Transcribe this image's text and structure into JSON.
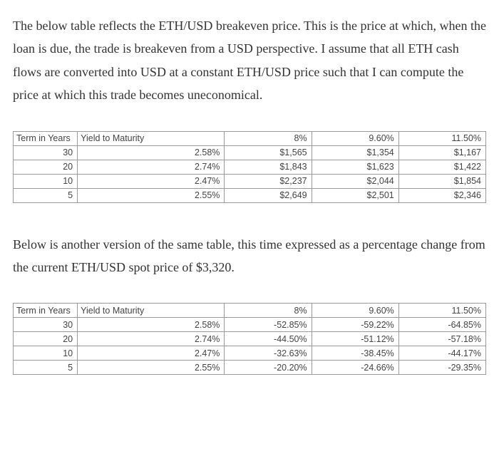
{
  "paragraph1": "The below table reflects the ETH/USD breakeven price. This is the price at which, when the loan is due, the trade is breakeven from a USD perspective. I assume that all ETH cash flows are converted into USD at a constant ETH/USD price such that I can compute the price at which this trade becomes uneconomical.",
  "paragraph2": "Below is another version of the same table, this time expressed as a percentage change from the current ETH/USD spot price of $3,320.",
  "table1": {
    "header_term": "Term in Years",
    "header_ytm": "Yield to Maturity",
    "header_c1": "8%",
    "header_c2": "9.60%",
    "header_c3": "11.50%",
    "rows": [
      {
        "term": "30",
        "ytm": "2.58%",
        "c1": "$1,565",
        "c2": "$1,354",
        "c3": "$1,167"
      },
      {
        "term": "20",
        "ytm": "2.74%",
        "c1": "$1,843",
        "c2": "$1,623",
        "c3": "$1,422"
      },
      {
        "term": "10",
        "ytm": "2.47%",
        "c1": "$2,237",
        "c2": "$2,044",
        "c3": "$1,854"
      },
      {
        "term": "5",
        "ytm": "2.55%",
        "c1": "$2,649",
        "c2": "$2,501",
        "c3": "$2,346"
      }
    ]
  },
  "table2": {
    "header_term": "Term in Years",
    "header_ytm": "Yield to Maturity",
    "header_c1": "8%",
    "header_c2": "9.60%",
    "header_c3": "11.50%",
    "rows": [
      {
        "term": "30",
        "ytm": "2.58%",
        "c1": "-52.85%",
        "c2": "-59.22%",
        "c3": "-64.85%"
      },
      {
        "term": "20",
        "ytm": "2.74%",
        "c1": "-44.50%",
        "c2": "-51.12%",
        "c3": "-57.18%"
      },
      {
        "term": "10",
        "ytm": "2.47%",
        "c1": "-32.63%",
        "c2": "-38.45%",
        "c3": "-44.17%"
      },
      {
        "term": "5",
        "ytm": "2.55%",
        "c1": "-20.20%",
        "c2": "-24.66%",
        "c3": "-29.35%"
      }
    ]
  }
}
